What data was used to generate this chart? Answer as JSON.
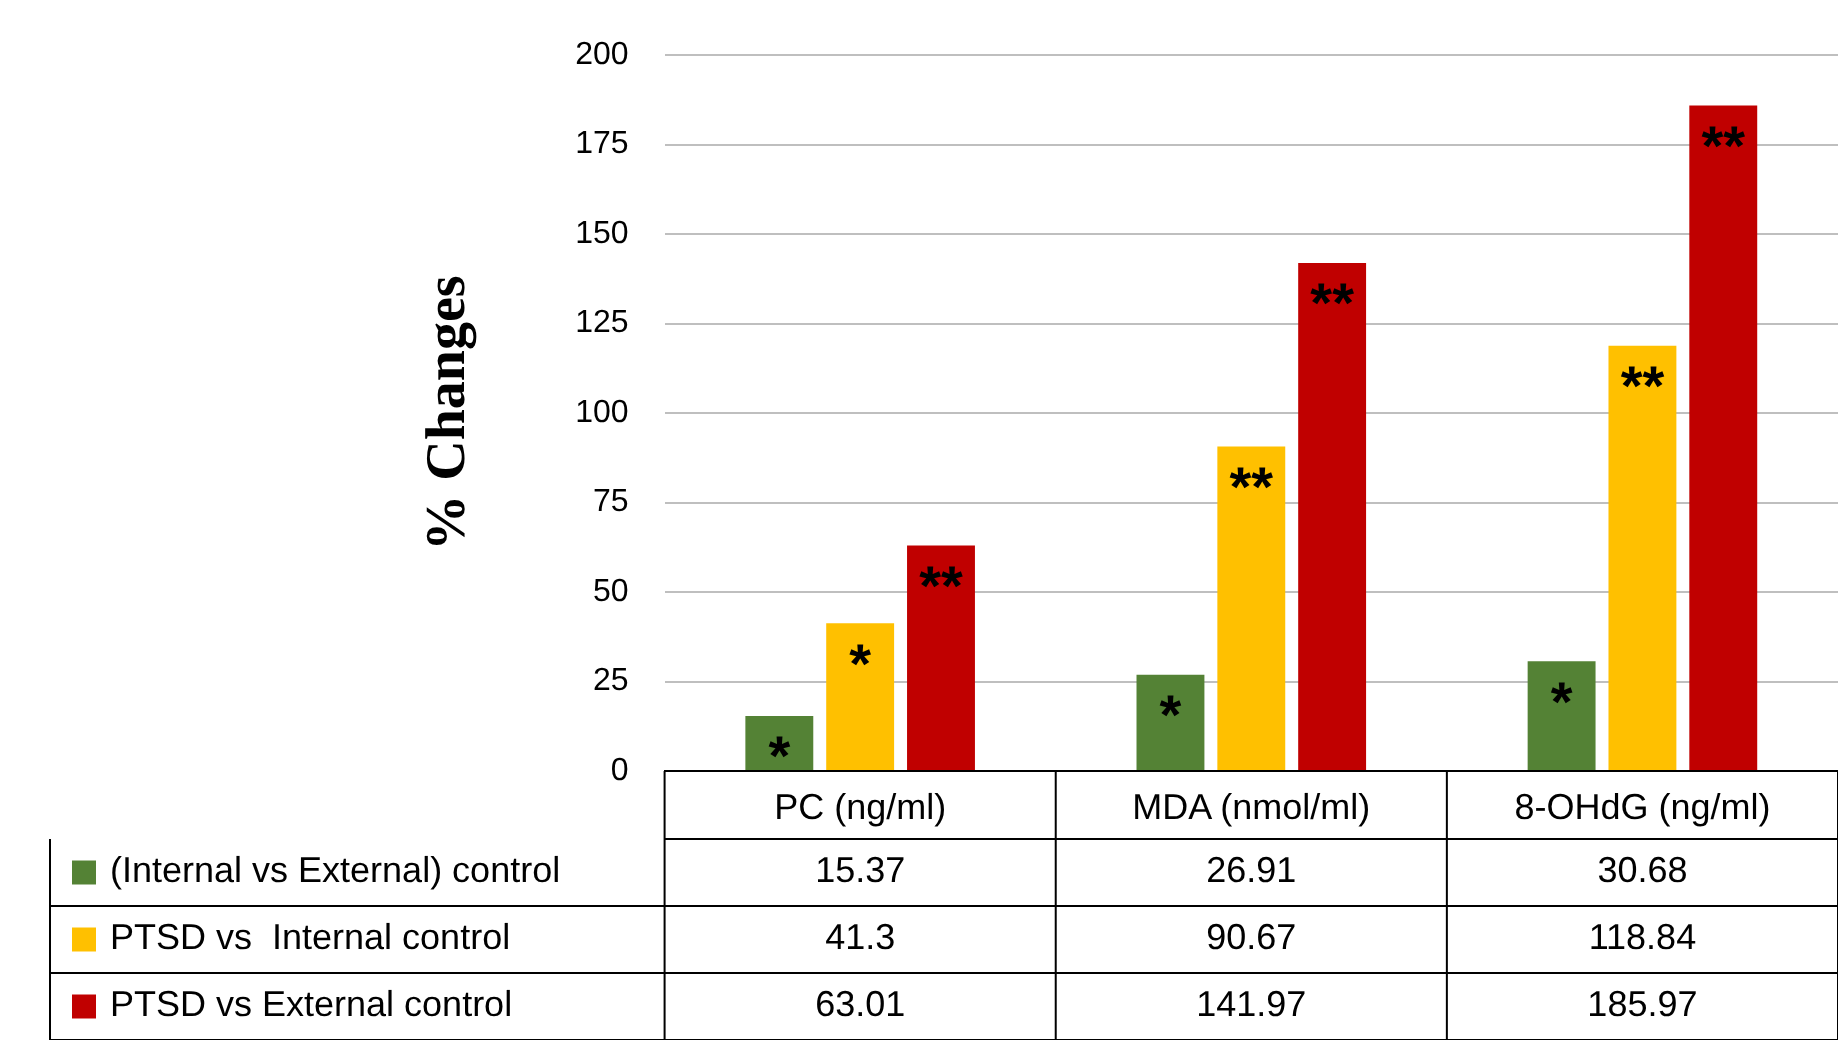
{
  "chart_data": {
    "type": "bar",
    "ylabel": "% Changes",
    "categories": [
      "PC (ng/ml)",
      "MDA (nmol/ml)",
      "8-OHdG (ng/ml)"
    ],
    "series": [
      {
        "name": "(Internal vs External) control",
        "color": "#548235",
        "values": [
          15.37,
          26.91,
          30.68
        ]
      },
      {
        "name": "PTSD vs  Internal control",
        "color": "#ffc000",
        "values": [
          41.3,
          90.67,
          118.84
        ]
      },
      {
        "name": "PTSD vs External control",
        "color": "#c00000",
        "values": [
          63.01,
          141.97,
          185.97
        ]
      }
    ],
    "annotations": [
      "*",
      "*",
      "**",
      "*",
      "**",
      "**",
      "*",
      "**",
      "**"
    ],
    "ylim": [
      0,
      200
    ],
    "yticks": [
      0,
      25,
      50,
      75,
      100,
      125,
      150,
      175,
      200
    ],
    "grid": "y",
    "legend": "bottom",
    "data_labels": true
  }
}
